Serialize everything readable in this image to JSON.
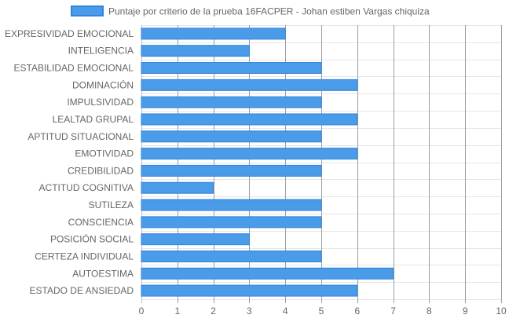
{
  "chart_data": {
    "type": "bar",
    "orientation": "horizontal",
    "categories": [
      "EXPRESIVIDAD EMOCIONAL",
      "INTELIGENCIA",
      "ESTABILIDAD EMOCIONAL",
      "DOMINACIÓN",
      "IMPULSIVIDAD",
      "LEALTAD GRUPAL",
      "APTITUD SITUACIONAL",
      "EMOTIVIDAD",
      "CREDIBILIDAD",
      "ACTITUD COGNITIVA",
      "SUTILEZA",
      "CONSCIENCIA",
      "POSICIÓN SOCIAL",
      "CERTEZA INDIVIDUAL",
      "AUTOESTIMA",
      "ESTADO DE ANSIEDAD"
    ],
    "series": [
      {
        "name": "Puntaje por criterio de la prueba 16FACPER - Johan estiben Vargas chiquiza",
        "values": [
          4,
          3,
          5,
          6,
          5,
          6,
          5,
          6,
          5,
          2,
          5,
          5,
          3,
          5,
          7,
          6
        ],
        "color": "#4a9be8",
        "border_color": "#2f86de"
      }
    ],
    "xlim": [
      0,
      10
    ],
    "x_ticks": [
      "0",
      "1",
      "2",
      "3",
      "4",
      "5",
      "6",
      "7",
      "8",
      "9",
      "10"
    ],
    "grid": true,
    "legend": "top-center"
  }
}
